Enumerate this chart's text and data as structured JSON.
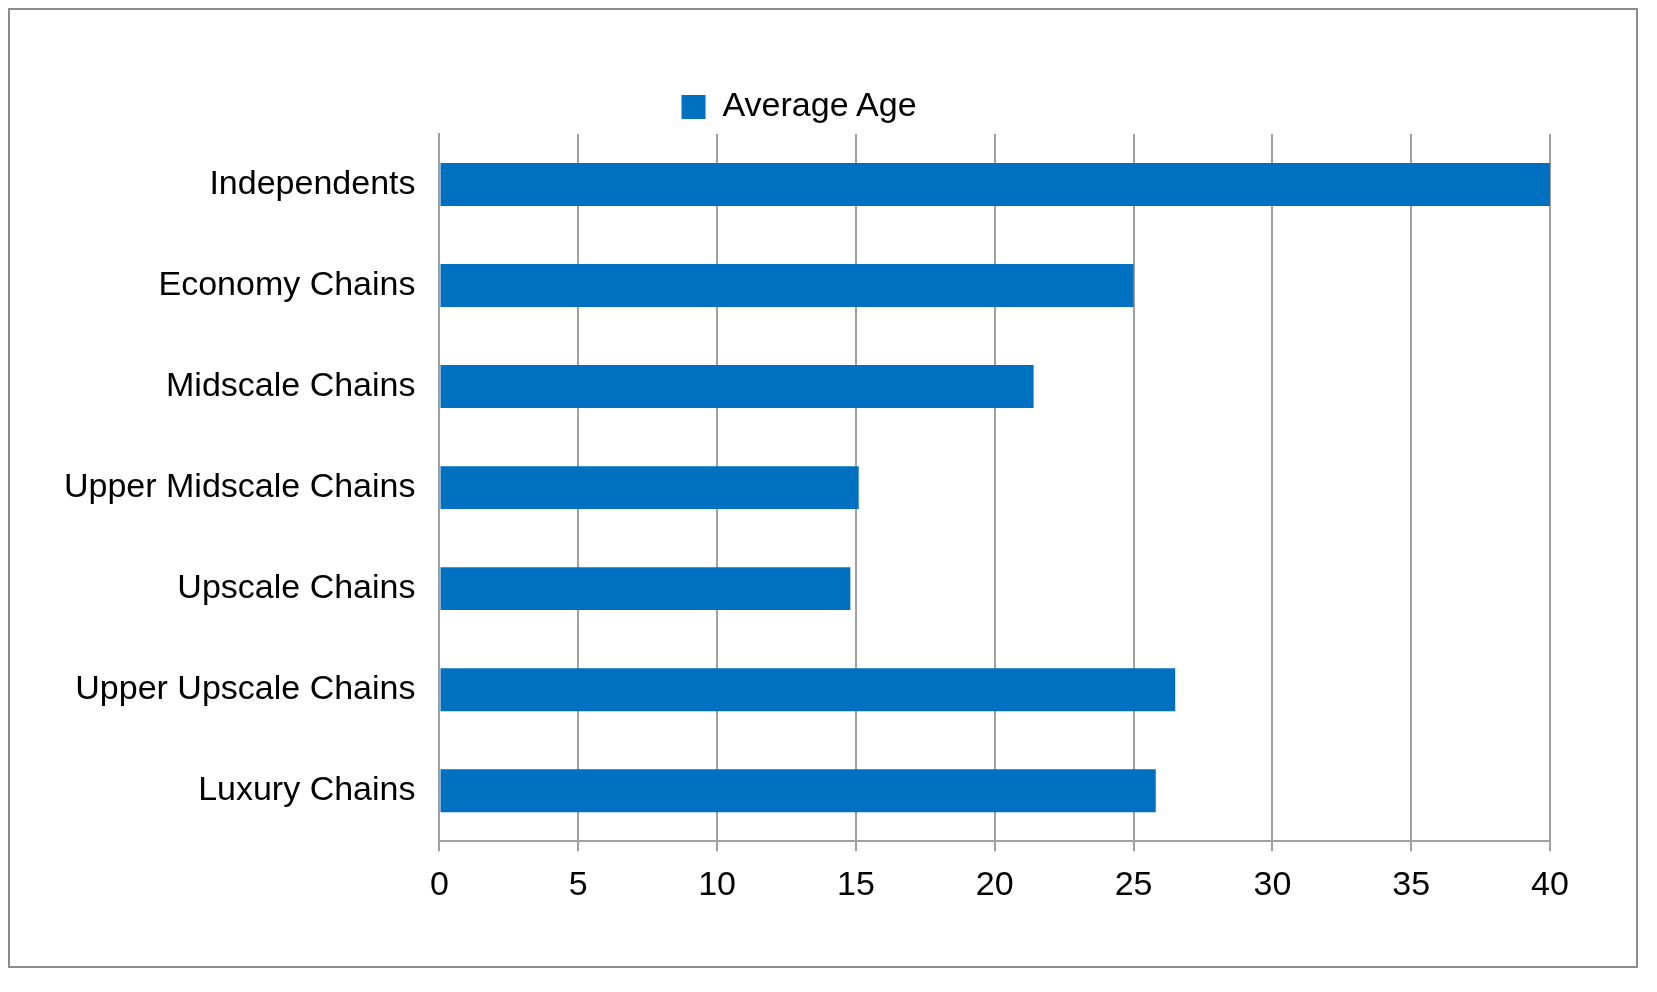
{
  "chart_data": {
    "type": "bar",
    "orientation": "horizontal",
    "categories": [
      "Independents",
      "Economy Chains",
      "Midscale Chains",
      "Upper Midscale Chains",
      "Upscale Chains",
      "Upper Upscale Chains",
      "Luxury Chains"
    ],
    "series": [
      {
        "name": "Average Age",
        "color": "#0070c0",
        "values": [
          40,
          25,
          21.4,
          15.1,
          14.8,
          26.5,
          25.8
        ]
      }
    ],
    "xlim": [
      0,
      40
    ],
    "xticks": [
      0,
      5,
      10,
      15,
      20,
      25,
      30,
      35,
      40
    ],
    "grid": "x",
    "legend": "top"
  }
}
